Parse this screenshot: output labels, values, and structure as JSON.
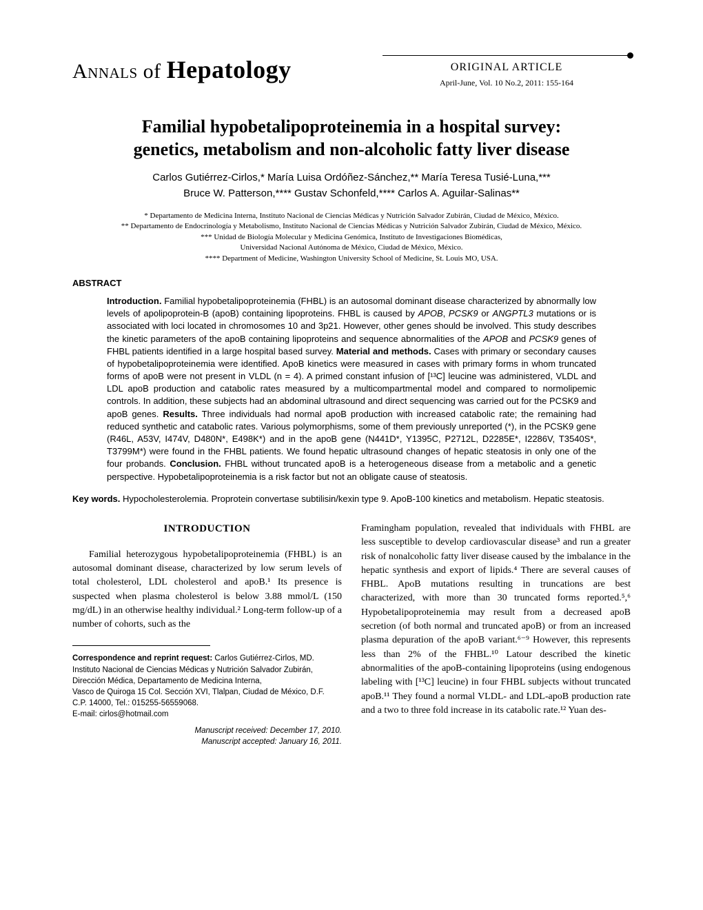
{
  "journal": {
    "name_part1": "Annals",
    "name_part2": "of",
    "name_part3": "Hepatology",
    "article_type": "ORIGINAL ARTICLE",
    "issue": "April-June, Vol. 10 No.2, 2011: 155-164"
  },
  "title_line1": "Familial hypobetalipoproteinemia in a hospital survey:",
  "title_line2": "genetics, metabolism and non-alcoholic fatty liver disease",
  "authors_line1": "Carlos Gutiérrez-Cirlos,* María Luisa Ordóñez-Sánchez,** María Teresa Tusié-Luna,***",
  "authors_line2": "Bruce W. Patterson,**** Gustav Schonfeld,**** Carlos A. Aguilar-Salinas**",
  "affiliations": [
    "* Departamento de Medicina Interna, Instituto Nacional de Ciencias Médicas y Nutrición Salvador Zubirán, Ciudad de México, México.",
    "** Departamento de Endocrinología y Metabolismo, Instituto Nacional de Ciencias Médicas y Nutrición Salvador Zubirán, Ciudad de México, México.",
    "*** Unidad de Biología Molecular y Medicina Genómica, Instituto de Investigaciones Biomédicas,",
    "Universidad Nacional Autónoma de México, Ciudad de México, México.",
    "**** Department of Medicine, Washington University School of Medicine, St. Louis MO, USA."
  ],
  "abstract_heading": "ABSTRACT",
  "abstract": {
    "intro_label": "Introduction.",
    "intro_text": " Familial hypobetalipoproteinemia (FHBL) is an autosomal dominant disease characterized by abnormally low levels of apolipoprotein-B (apoB) containing lipoproteins. FHBL is caused by ",
    "gene1": "APOB",
    "comma1": ", ",
    "gene2": "PCSK9",
    "or_text": " or ",
    "gene3": "ANGPTL3",
    "intro_text2": " mutations or is associated with loci located in chromosomes 10 and 3p21. However, other genes should be involved. This study describes the kinetic parameters of the apoB containing lipoproteins and sequence abnormalities of the ",
    "gene4": "APOB",
    "and_text": " and ",
    "gene5": "PCSK9",
    "intro_text3": " genes of FHBL patients identified in a large hospital based survey. ",
    "methods_label": "Material and methods.",
    "methods_text": " Cases with primary or secondary causes of hypobetalipoproteinemia were identified. ApoB kinetics were measured in cases with primary forms in whom truncated forms of apoB were not present in VLDL (n = 4). A primed constant infusion of [¹³C] leucine was administered, VLDL and LDL apoB production and catabolic rates measured by a multicompartmental model and compared to normolipemic controls. In addition, these subjects had an abdominal ultrasound and direct sequencing was carried out for the PCSK9 and apoB genes. ",
    "results_label": "Results.",
    "results_text": " Three individuals had normal apoB production with increased catabolic rate; the remaining had reduced synthetic and catabolic rates. Various polymorphisms, some of them previously unreported (*), in the PCSK9 gene (R46L, A53V, I474V, D480N*, E498K*) and in the apoB gene (N441D*, Y1395C, P2712L, D2285E*, I2286V, T3540S*, T3799M*) were found in the FHBL patients. We found hepatic ultrasound changes of hepatic steatosis in only one of the four probands. ",
    "conclusion_label": "Conclusion.",
    "conclusion_text": " FHBL without truncated apoB is a heterogeneous disease from a metabolic and a genetic perspective. Hypobetalipoproteinemia is a risk factor but not an obligate cause of steatosis."
  },
  "keywords_label": "Key words.",
  "keywords_text": " Hypocholesterolemia. Proprotein convertase subtilisin/kexin type 9. ApoB-100 kinetics and metabolism. Hepatic steatosis.",
  "intro_heading": "INTRODUCTION",
  "col1_text": "Familial heterozygous hypobetalipoproteinemia (FHBL) is an autosomal dominant disease, characterized by low serum levels of total cholesterol, LDL cholesterol and apoB.¹ Its presence is suspected when plasma cholesterol is below 3.88 mmol/L (150 mg/dL) in an otherwise healthy individual.² Long-term follow-up of a number of cohorts, such as the",
  "col2_text": "Framingham population, revealed that individuals with FHBL are less susceptible to develop cardiovascular disease³ and run a greater risk of nonalcoholic fatty liver disease caused by the imbalance in the hepatic synthesis and export of lipids.⁴ There are several causes of FHBL. ApoB mutations resulting in truncations are best characterized, with more than 30 truncated forms reported.⁵,⁶ Hypobetalipoproteinemia may result from a decreased apoB secretion (of both normal and truncated apoB) or from an increased plasma depuration of the apoB variant.⁶⁻⁹ However, this represents less than 2% of the FHBL.¹⁰ Latour described the kinetic abnormalities of the apoB-containing lipoproteins (using endogenous labeling with [¹³C] leucine) in four FHBL subjects without truncated apoB.¹¹ They found a normal VLDL- and LDL-apoB production rate and a two to three fold increase in its catabolic rate.¹² Yuan des-",
  "correspondence": {
    "label": "Correspondence and reprint request:",
    "name": " Carlos Gutiérrez-Cirlos, MD.",
    "line1": "Instituto Nacional de Ciencias Médicas y Nutrición Salvador Zubirán,",
    "line2": "Dirección Médica, Departamento de Medicina Interna,",
    "line3": "Vasco de Quiroga 15 Col. Sección XVI, Tlalpan, Ciudad de México, D.F.",
    "line4": "C.P. 14000, Tel.: 015255-56559068.",
    "line5": "E-mail: cirlos@hotmail.com"
  },
  "dates": {
    "received": "Manuscript received: December 17, 2010.",
    "accepted": "Manuscript accepted: January 16, 2011."
  }
}
